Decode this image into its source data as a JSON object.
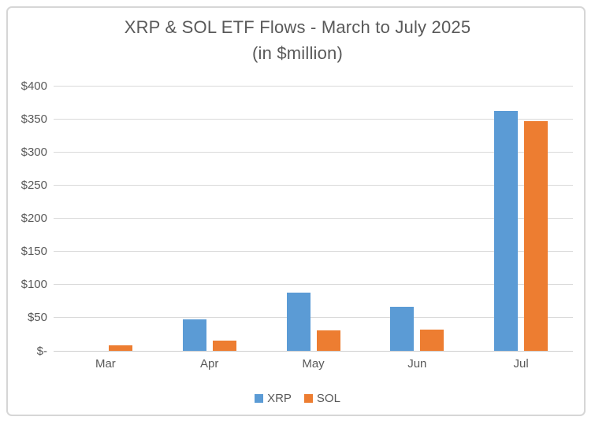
{
  "page": {
    "background_color": "#FFFFFF",
    "frame_border_color": "#D6D6D6"
  },
  "chart_data": {
    "type": "bar",
    "title": "XRP & SOL ETF Flows - March to July 2025 (in $million)",
    "title_lines": [
      "XRP & SOL ETF Flows - March to July 2025",
      "(in $million)"
    ],
    "categories": [
      "Mar",
      "Apr",
      "May",
      "Jun",
      "Jul"
    ],
    "series": [
      {
        "name": "XRP",
        "color": "#5B9BD5",
        "values": [
          0,
          48,
          88,
          67,
          362
        ]
      },
      {
        "name": "SOL",
        "color": "#ED7D31",
        "values": [
          8,
          15,
          31,
          32,
          347
        ]
      }
    ],
    "xlabel": "",
    "ylabel": "",
    "ylim": [
      0,
      400
    ],
    "ytick_values": [
      400,
      350,
      300,
      250,
      200,
      150,
      100,
      50,
      0
    ],
    "ytick_labels": [
      "$400",
      "$350",
      "$300",
      "$250",
      "$200",
      "$150",
      "$100",
      "$50",
      "$-"
    ],
    "grid": true,
    "legend_position": "bottom",
    "text_color": "#595959",
    "grid_color": "#D9D9D9"
  }
}
